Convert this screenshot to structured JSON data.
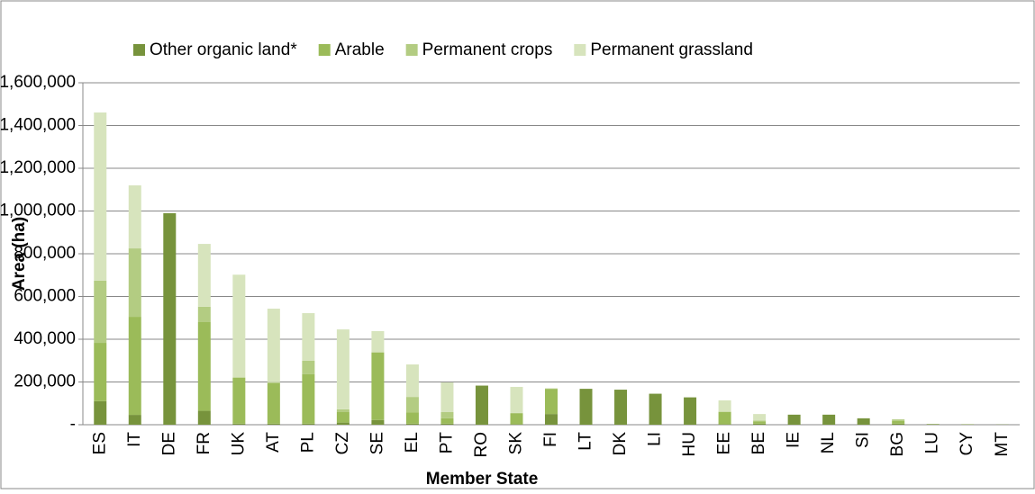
{
  "chart_data": {
    "type": "bar",
    "stacked": true,
    "x_label": "Member State",
    "y_label": "Area (ha)",
    "categories": [
      "ES",
      "IT",
      "DE",
      "FR",
      "UK",
      "AT",
      "PL",
      "CZ",
      "SE",
      "EL",
      "PT",
      "RO",
      "SK",
      "FI",
      "LT",
      "DK",
      "LI",
      "HU",
      "EE",
      "BE",
      "IE",
      "NL",
      "SI",
      "BG",
      "LU",
      "CY",
      "MT"
    ],
    "series": [
      {
        "name": "Other organic land*",
        "color": "#77933c",
        "values": [
          110000,
          46000,
          990000,
          65000,
          5000,
          5000,
          5000,
          10000,
          22000,
          5000,
          5000,
          183000,
          3000,
          50000,
          168000,
          164000,
          145000,
          128000,
          3000,
          5000,
          47000,
          47000,
          30000,
          5000,
          3000,
          2000,
          1000
        ]
      },
      {
        "name": "Arable",
        "color": "#9bbb59",
        "values": [
          273000,
          459000,
          0,
          415000,
          214000,
          189000,
          231000,
          49000,
          315000,
          52000,
          25000,
          0,
          50000,
          118000,
          0,
          0,
          0,
          0,
          57000,
          10000,
          0,
          0,
          0,
          12000,
          0,
          0,
          0
        ]
      },
      {
        "name": "Permanent crops",
        "color": "#b3cc82",
        "values": [
          291000,
          320000,
          0,
          72000,
          3000,
          5000,
          63000,
          13000,
          3000,
          73000,
          29000,
          0,
          2000,
          0,
          0,
          0,
          0,
          0,
          2000,
          5000,
          0,
          0,
          0,
          8000,
          0,
          0,
          0
        ]
      },
      {
        "name": "Permanent grassland",
        "color": "#d7e4bd",
        "values": [
          787000,
          295000,
          0,
          294000,
          480000,
          344000,
          223000,
          374000,
          98000,
          152000,
          139000,
          0,
          122000,
          3000,
          0,
          0,
          0,
          0,
          52000,
          30000,
          0,
          0,
          0,
          0,
          0,
          0,
          0
        ]
      }
    ],
    "ylim": [
      0,
      1600000
    ],
    "yticks": [
      {
        "value": 0,
        "label": "-"
      },
      {
        "value": 200000,
        "label": "200,000"
      },
      {
        "value": 400000,
        "label": "400,000"
      },
      {
        "value": 600000,
        "label": "600,000"
      },
      {
        "value": 800000,
        "label": "800,000"
      },
      {
        "value": 1000000,
        "label": "1,000,000"
      },
      {
        "value": 1200000,
        "label": "1,200,000"
      },
      {
        "value": 1400000,
        "label": "1,400,000"
      },
      {
        "value": 1600000,
        "label": "1,600,000"
      }
    ],
    "grid": true,
    "legend": "top"
  }
}
